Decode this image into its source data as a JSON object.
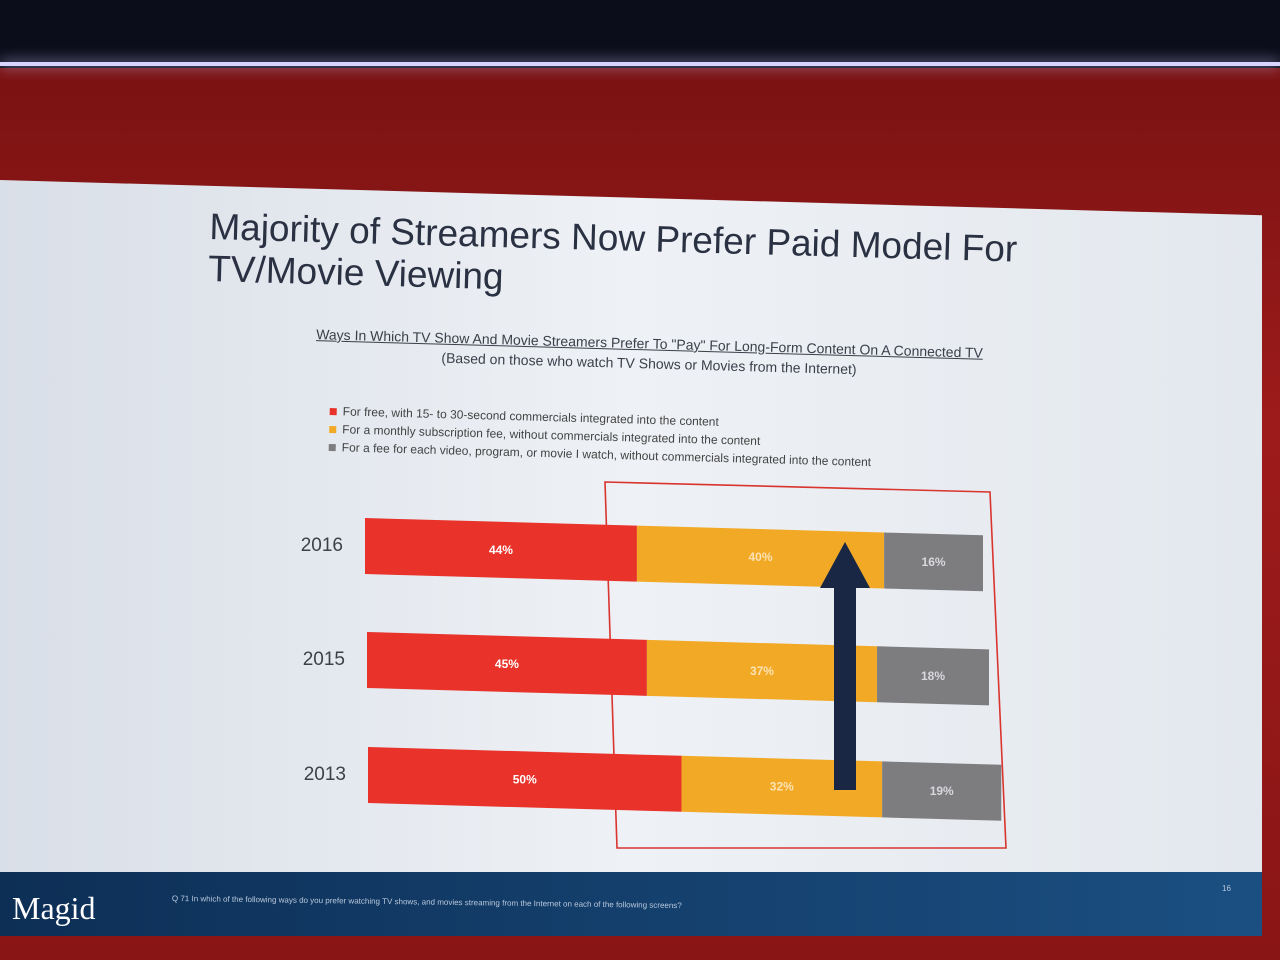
{
  "slide": {
    "title": "Majority of Streamers Now Prefer Paid Model For TV/Movie Viewing",
    "subtitle_line1": "Ways In Which TV Show And Movie Streamers Prefer To \"Pay\" For Long-Form Content On A Connected TV",
    "subtitle_line2": "(Based on those who watch TV Shows or Movies from the Internet)",
    "logo": "Magid",
    "footnote": "Q 71 In which of the following ways do you prefer watching TV shows, and movies streaming from the Internet on each of the following screens?",
    "page_number": "16"
  },
  "chart_data": {
    "type": "bar",
    "orientation": "horizontal",
    "stacked": true,
    "stack_total": 100,
    "categories": [
      "2016",
      "2015",
      "2013"
    ],
    "series": [
      {
        "name": "For free, with 15- to 30-second commercials integrated into the content",
        "values": [
          44,
          45,
          50
        ],
        "labels": [
          "44%",
          "45%",
          "50%"
        ],
        "color": "#e8322a"
      },
      {
        "name": "For a monthly subscription fee, without commercials integrated into the content",
        "values": [
          40,
          37,
          32
        ],
        "labels": [
          "40%",
          "37%",
          "32%"
        ],
        "color": "#f2a926"
      },
      {
        "name": "For a fee for each video, program, or movie I watch, without commercials integrated into the content",
        "values": [
          16,
          18,
          19
        ],
        "labels": [
          "16%",
          "18%",
          "19%"
        ],
        "color": "#7d7d80"
      }
    ],
    "legend_position": "top",
    "grid": false,
    "highlight": "red outline around paid-model segments with upward arrow"
  }
}
